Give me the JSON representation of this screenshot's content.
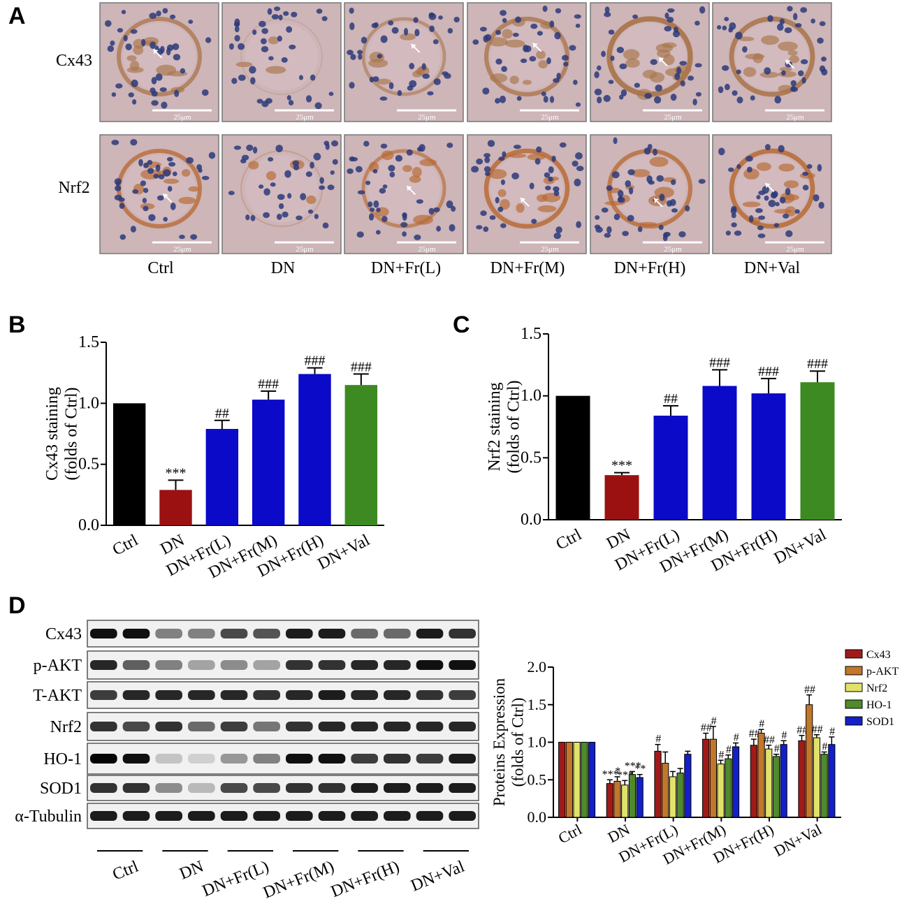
{
  "panel_letters": [
    "A",
    "B",
    "C",
    "D"
  ],
  "micrographs": {
    "row_labels": [
      "Cx43",
      "Nrf2"
    ],
    "column_labels": [
      "Ctrl",
      "DN",
      "DN+Fr(L)",
      "DN+Fr(M)",
      "DN+Fr(H)",
      "DN+Val"
    ],
    "scale_bar_label": "25μm",
    "stain_colors": {
      "Cx43": "#a9744a",
      "Nrf2": "#b7672f",
      "background": "#cdb5b8",
      "nuclei": "#2b3a7a"
    },
    "stain_level": {
      "Cx43": [
        1.0,
        0.29,
        0.79,
        1.03,
        1.24,
        1.15
      ],
      "Nrf2": [
        1.0,
        0.36,
        0.84,
        1.08,
        1.02,
        1.11
      ]
    }
  },
  "blot": {
    "proteins": [
      "Cx43",
      "p-AKT",
      "T-AKT",
      "Nrf2",
      "HO-1",
      "SOD1",
      "α-Tubulin"
    ],
    "lane_groups": [
      "Ctrl",
      "DN",
      "DN+Fr(L)",
      "DN+Fr(M)",
      "DN+Fr(H)",
      "DN+Val"
    ],
    "band_intensity": {
      "Cx43": [
        0.95,
        0.95,
        0.45,
        0.45,
        0.7,
        0.65,
        0.9,
        0.9,
        0.55,
        0.55,
        0.9,
        0.8
      ],
      "p-AKT": [
        0.85,
        0.6,
        0.45,
        0.3,
        0.4,
        0.3,
        0.8,
        0.8,
        0.85,
        0.85,
        0.95,
        0.95
      ],
      "T-AKT": [
        0.75,
        0.85,
        0.85,
        0.85,
        0.85,
        0.8,
        0.85,
        0.9,
        0.85,
        0.85,
        0.8,
        0.75
      ],
      "Nrf2": [
        0.8,
        0.7,
        0.8,
        0.55,
        0.75,
        0.5,
        0.8,
        0.85,
        0.85,
        0.85,
        0.85,
        0.85
      ],
      "HO-1": [
        1.0,
        0.95,
        0.15,
        0.1,
        0.35,
        0.45,
        0.95,
        0.95,
        0.75,
        0.8,
        0.75,
        0.9
      ],
      "SOD1": [
        0.8,
        0.8,
        0.4,
        0.2,
        0.7,
        0.7,
        0.8,
        0.8,
        0.9,
        0.9,
        0.9,
        0.9
      ],
      "α-Tubulin": [
        0.9,
        0.9,
        0.9,
        0.9,
        0.9,
        0.9,
        0.9,
        0.9,
        0.9,
        0.9,
        0.9,
        0.9
      ]
    }
  },
  "chart_data": [
    {
      "type": "bar",
      "panel": "B",
      "ylabel": [
        "Cx43 staining",
        "(folds of Ctrl)"
      ],
      "categories": [
        "Ctrl",
        "DN",
        "DN+Fr(L)",
        "DN+Fr(M)",
        "DN+Fr(H)",
        "DN+Val"
      ],
      "values": [
        1.0,
        0.29,
        0.79,
        1.03,
        1.24,
        1.15
      ],
      "errors": [
        0,
        0.08,
        0.07,
        0.07,
        0.05,
        0.09
      ],
      "annotations": [
        "",
        "***",
        "##",
        "###",
        "###",
        "###"
      ],
      "colors": [
        "#000000",
        "#9b1111",
        "#0a0ac8",
        "#0a0ac8",
        "#0a0ac8",
        "#3d8a23"
      ],
      "ylim": [
        0,
        1.5
      ],
      "yticks": [
        "0.0",
        "0.5",
        "1.0",
        "1.5"
      ]
    },
    {
      "type": "bar",
      "panel": "C",
      "ylabel": [
        "Nrf2 staining",
        "(folds of Ctrl)"
      ],
      "categories": [
        "Ctrl",
        "DN",
        "DN+Fr(L)",
        "DN+Fr(M)",
        "DN+Fr(H)",
        "DN+Val"
      ],
      "values": [
        1.0,
        0.36,
        0.84,
        1.08,
        1.02,
        1.11
      ],
      "errors": [
        0,
        0.02,
        0.08,
        0.13,
        0.12,
        0.09
      ],
      "annotations": [
        "",
        "***",
        "##",
        "###",
        "###",
        "###"
      ],
      "colors": [
        "#000000",
        "#9b1111",
        "#0a0ac8",
        "#0a0ac8",
        "#0a0ac8",
        "#3d8a23"
      ],
      "ylim": [
        0,
        1.5
      ],
      "yticks": [
        "0.0",
        "0.5",
        "1.0",
        "1.5"
      ]
    },
    {
      "type": "bar",
      "panel": "D",
      "ylabel": [
        "Proteins Expression",
        "(folds of Ctrl)"
      ],
      "categories": [
        "Ctrl",
        "DN",
        "DN+Fr(L)",
        "DN+Fr(M)",
        "DN+Fr(H)",
        "DN+Val"
      ],
      "series": [
        {
          "name": "Cx43",
          "color": "#a01a1a",
          "values": [
            1.0,
            0.45,
            0.88,
            1.04,
            0.96,
            1.02
          ],
          "errors": [
            0,
            0.05,
            0.09,
            0.08,
            0.08,
            0.07
          ],
          "annotations": [
            "",
            "***",
            "#",
            "##",
            "##",
            "##"
          ]
        },
        {
          "name": "p-AKT",
          "color": "#c2772a",
          "values": [
            1.0,
            0.48,
            0.72,
            1.04,
            1.12,
            1.5
          ],
          "errors": [
            0,
            0.06,
            0.15,
            0.17,
            0.05,
            0.13
          ],
          "annotations": [
            "",
            "*",
            "",
            "#",
            "#",
            "##"
          ]
        },
        {
          "name": "Nrf2",
          "color": "#e2e26a",
          "values": [
            1.0,
            0.43,
            0.54,
            0.71,
            0.91,
            1.06
          ],
          "errors": [
            0,
            0.06,
            0.07,
            0.05,
            0.05,
            0.04
          ],
          "annotations": [
            "",
            "***",
            "",
            "#",
            "##",
            "##"
          ]
        },
        {
          "name": "HO-1",
          "color": "#4f8a2c",
          "values": [
            1.0,
            0.57,
            0.59,
            0.78,
            0.81,
            0.84
          ],
          "errors": [
            0,
            0.04,
            0.06,
            0.05,
            0.03,
            0.03
          ],
          "annotations": [
            "",
            "***",
            "",
            "#",
            "#",
            "#"
          ]
        },
        {
          "name": "SOD1",
          "color": "#1320c8",
          "values": [
            1.0,
            0.53,
            0.84,
            0.94,
            0.97,
            0.97
          ],
          "errors": [
            0,
            0.04,
            0.04,
            0.05,
            0.05,
            0.1
          ],
          "annotations": [
            "",
            "**",
            "",
            "#",
            "#",
            "#"
          ]
        }
      ],
      "ylim": [
        0,
        2.0
      ],
      "yticks": [
        "0.0",
        "0.5",
        "1.0",
        "1.5",
        "2.0"
      ],
      "legend_position": "top-right"
    }
  ]
}
